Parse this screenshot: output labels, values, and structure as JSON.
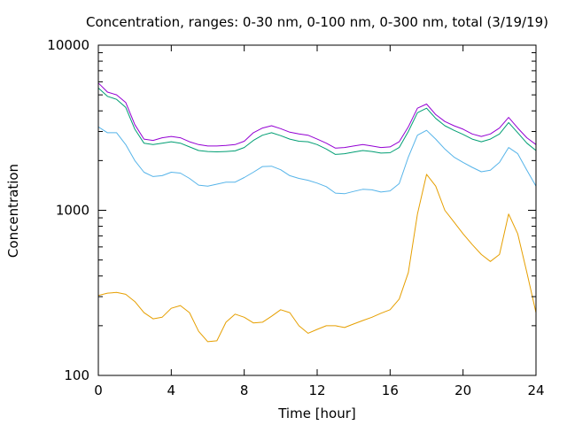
{
  "chart_data": {
    "type": "line",
    "title": "Concentration, ranges: 0-30 nm, 0-100 nm, 0-300 nm, total (3/19/19)",
    "xlabel": "Time [hour]",
    "ylabel": "Concentration",
    "xlim": [
      0,
      24
    ],
    "ylim": [
      100,
      10000
    ],
    "yscale": "log",
    "x_ticks": [
      "0",
      "4",
      "8",
      "12",
      "16",
      "20",
      "24"
    ],
    "y_ticks": [
      "100",
      "1000",
      "10000"
    ],
    "grid": false,
    "legend": "none",
    "x": [
      0,
      0.5,
      1,
      1.5,
      2,
      2.5,
      3,
      3.5,
      4,
      4.5,
      5,
      5.5,
      6,
      6.5,
      7,
      7.5,
      8,
      8.5,
      9,
      9.5,
      10,
      10.5,
      11,
      11.5,
      12,
      12.5,
      13,
      13.5,
      14,
      14.5,
      15,
      15.5,
      16,
      16.5,
      17,
      17.5,
      18,
      18.5,
      19,
      19.5,
      20,
      20.5,
      21,
      21.5,
      22,
      22.5,
      23,
      23.5,
      24
    ],
    "series": [
      {
        "color": "#e69f00",
        "values": [
          305,
          315,
          318,
          310,
          280,
          240,
          220,
          225,
          255,
          265,
          240,
          185,
          160,
          162,
          210,
          235,
          225,
          208,
          210,
          228,
          250,
          240,
          200,
          180,
          190,
          200,
          200,
          195,
          205,
          215,
          225,
          238,
          250,
          290,
          420,
          950,
          1650,
          1400,
          1000,
          850,
          720,
          620,
          540,
          490,
          540,
          950,
          720,
          420,
          240
        ]
      },
      {
        "color": "#56b4e9",
        "values": [
          3200,
          2950,
          2950,
          2500,
          2000,
          1700,
          1600,
          1620,
          1700,
          1680,
          1560,
          1420,
          1400,
          1440,
          1480,
          1480,
          1580,
          1700,
          1840,
          1850,
          1760,
          1620,
          1560,
          1520,
          1460,
          1390,
          1270,
          1260,
          1300,
          1340,
          1330,
          1290,
          1310,
          1450,
          2100,
          2850,
          3050,
          2700,
          2350,
          2100,
          1950,
          1820,
          1710,
          1750,
          1950,
          2400,
          2200,
          1750,
          1400
        ]
      },
      {
        "color": "#009e73",
        "values": [
          5500,
          4900,
          4700,
          4200,
          3100,
          2550,
          2500,
          2550,
          2600,
          2550,
          2420,
          2300,
          2270,
          2260,
          2270,
          2290,
          2400,
          2650,
          2850,
          2950,
          2830,
          2700,
          2620,
          2600,
          2500,
          2350,
          2180,
          2200,
          2250,
          2300,
          2270,
          2220,
          2230,
          2400,
          3000,
          3900,
          4150,
          3600,
          3250,
          3050,
          2880,
          2700,
          2600,
          2700,
          2900,
          3400,
          2950,
          2550,
          2300
        ]
      },
      {
        "color": "#9400d3",
        "values": [
          5900,
          5200,
          5000,
          4500,
          3300,
          2700,
          2650,
          2750,
          2800,
          2750,
          2600,
          2500,
          2450,
          2450,
          2470,
          2500,
          2620,
          2950,
          3150,
          3250,
          3120,
          2970,
          2900,
          2850,
          2700,
          2550,
          2380,
          2400,
          2450,
          2500,
          2450,
          2400,
          2420,
          2600,
          3200,
          4150,
          4400,
          3800,
          3450,
          3250,
          3100,
          2900,
          2800,
          2900,
          3150,
          3650,
          3150,
          2750,
          2500
        ]
      }
    ]
  }
}
